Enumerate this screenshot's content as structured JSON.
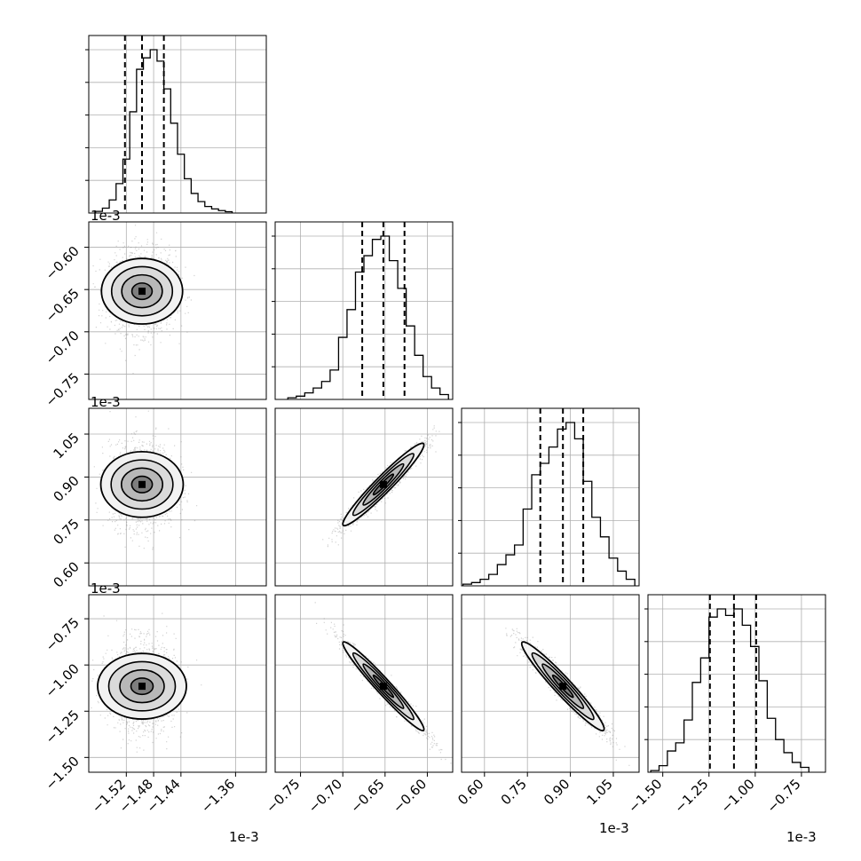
{
  "chart_data": {
    "type": "corner",
    "grid": true,
    "offset_text": "1e-3",
    "parameters": [
      {
        "range": [
          -1.575,
          -1.315
        ],
        "ticks": [
          "−1.52",
          "−1.48",
          "−1.44",
          "−1.36"
        ],
        "tick_values": [
          -1.52,
          -1.48,
          -1.44,
          -1.36
        ],
        "quantiles": [
          -1.522,
          -1.497,
          -1.465
        ],
        "hist": {
          "edges": [
            -1.565,
            -1.555,
            -1.545,
            -1.535,
            -1.525,
            -1.515,
            -1.505,
            -1.495,
            -1.485,
            -1.475,
            -1.465,
            -1.455,
            -1.445,
            -1.435,
            -1.425,
            -1.415,
            -1.405,
            -1.395,
            -1.385,
            -1.375,
            -1.365
          ],
          "counts": [
            0.01,
            0.03,
            0.08,
            0.18,
            0.33,
            0.62,
            0.88,
            0.95,
            1.0,
            0.93,
            0.76,
            0.55,
            0.36,
            0.21,
            0.12,
            0.07,
            0.04,
            0.025,
            0.015,
            0.008
          ]
        }
      },
      {
        "range": [
          -0.78,
          -0.57
        ],
        "ticks": [
          "−0.75",
          "−0.70",
          "−0.65",
          "−0.60"
        ],
        "tick_values": [
          -0.75,
          -0.7,
          -0.65,
          -0.6
        ],
        "quantiles": [
          -0.677,
          -0.652,
          -0.627
        ],
        "hist": {
          "edges": [
            -0.765,
            -0.755,
            -0.745,
            -0.735,
            -0.725,
            -0.715,
            -0.705,
            -0.695,
            -0.685,
            -0.675,
            -0.665,
            -0.655,
            -0.645,
            -0.635,
            -0.625,
            -0.615,
            -0.605,
            -0.595,
            -0.585,
            -0.575
          ],
          "counts": [
            0.01,
            0.02,
            0.04,
            0.07,
            0.11,
            0.18,
            0.38,
            0.55,
            0.78,
            0.88,
            0.98,
            1.0,
            0.85,
            0.68,
            0.45,
            0.27,
            0.14,
            0.07,
            0.03
          ]
        }
      },
      {
        "range": [
          0.52,
          1.14
        ],
        "ticks": [
          "0.60",
          "0.75",
          "0.90",
          "1.05"
        ],
        "tick_values": [
          0.6,
          0.75,
          0.9,
          1.05
        ],
        "quantiles": [
          0.795,
          0.874,
          0.945
        ],
        "hist": {
          "edges": [
            0.525,
            0.555,
            0.585,
            0.615,
            0.645,
            0.675,
            0.705,
            0.735,
            0.765,
            0.795,
            0.825,
            0.855,
            0.885,
            0.915,
            0.945,
            0.975,
            1.005,
            1.035,
            1.065,
            1.095,
            1.125
          ],
          "counts": [
            0.01,
            0.02,
            0.04,
            0.07,
            0.13,
            0.19,
            0.25,
            0.47,
            0.68,
            0.75,
            0.85,
            0.96,
            1.0,
            0.9,
            0.64,
            0.42,
            0.3,
            0.17,
            0.09,
            0.04
          ]
        }
      },
      {
        "range": [
          -1.58,
          -0.62
        ],
        "ticks": [
          "−1.50",
          "−1.25",
          "−1.00",
          "−0.75"
        ],
        "tick_values": [
          -1.5,
          -1.25,
          -1.0,
          -0.75
        ],
        "quantiles": [
          -1.245,
          -1.115,
          -0.995
        ],
        "hist": {
          "edges": [
            -1.565,
            -1.52,
            -1.475,
            -1.43,
            -1.385,
            -1.34,
            -1.295,
            -1.25,
            -1.205,
            -1.16,
            -1.115,
            -1.07,
            -1.025,
            -0.98,
            -0.935,
            -0.89,
            -0.845,
            -0.8,
            -0.755,
            -0.71
          ],
          "counts": [
            0.01,
            0.04,
            0.13,
            0.18,
            0.32,
            0.55,
            0.7,
            0.95,
            1.0,
            0.96,
            1.0,
            0.9,
            0.77,
            0.56,
            0.33,
            0.2,
            0.12,
            0.06,
            0.03
          ]
        }
      }
    ],
    "pairs": [
      {
        "row": 1,
        "col": 0,
        "mean": [
          -1.497,
          -0.652
        ],
        "std": [
          0.024,
          0.024
        ],
        "rho": 0.0
      },
      {
        "row": 2,
        "col": 0,
        "mean": [
          -1.497,
          0.874
        ],
        "std": [
          0.024,
          0.072
        ],
        "rho": 0.0
      },
      {
        "row": 2,
        "col": 1,
        "mean": [
          -0.652,
          0.874
        ],
        "std": [
          0.024,
          0.072
        ],
        "rho": 0.96
      },
      {
        "row": 3,
        "col": 0,
        "mean": [
          -1.497,
          -1.115
        ],
        "std": [
          0.024,
          0.12
        ],
        "rho": 0.0
      },
      {
        "row": 3,
        "col": 1,
        "mean": [
          -0.652,
          -1.115
        ],
        "std": [
          0.024,
          0.12
        ],
        "rho": -0.97
      },
      {
        "row": 3,
        "col": 2,
        "mean": [
          0.874,
          -1.115
        ],
        "std": [
          0.072,
          0.12
        ],
        "rho": -0.96
      }
    ]
  }
}
